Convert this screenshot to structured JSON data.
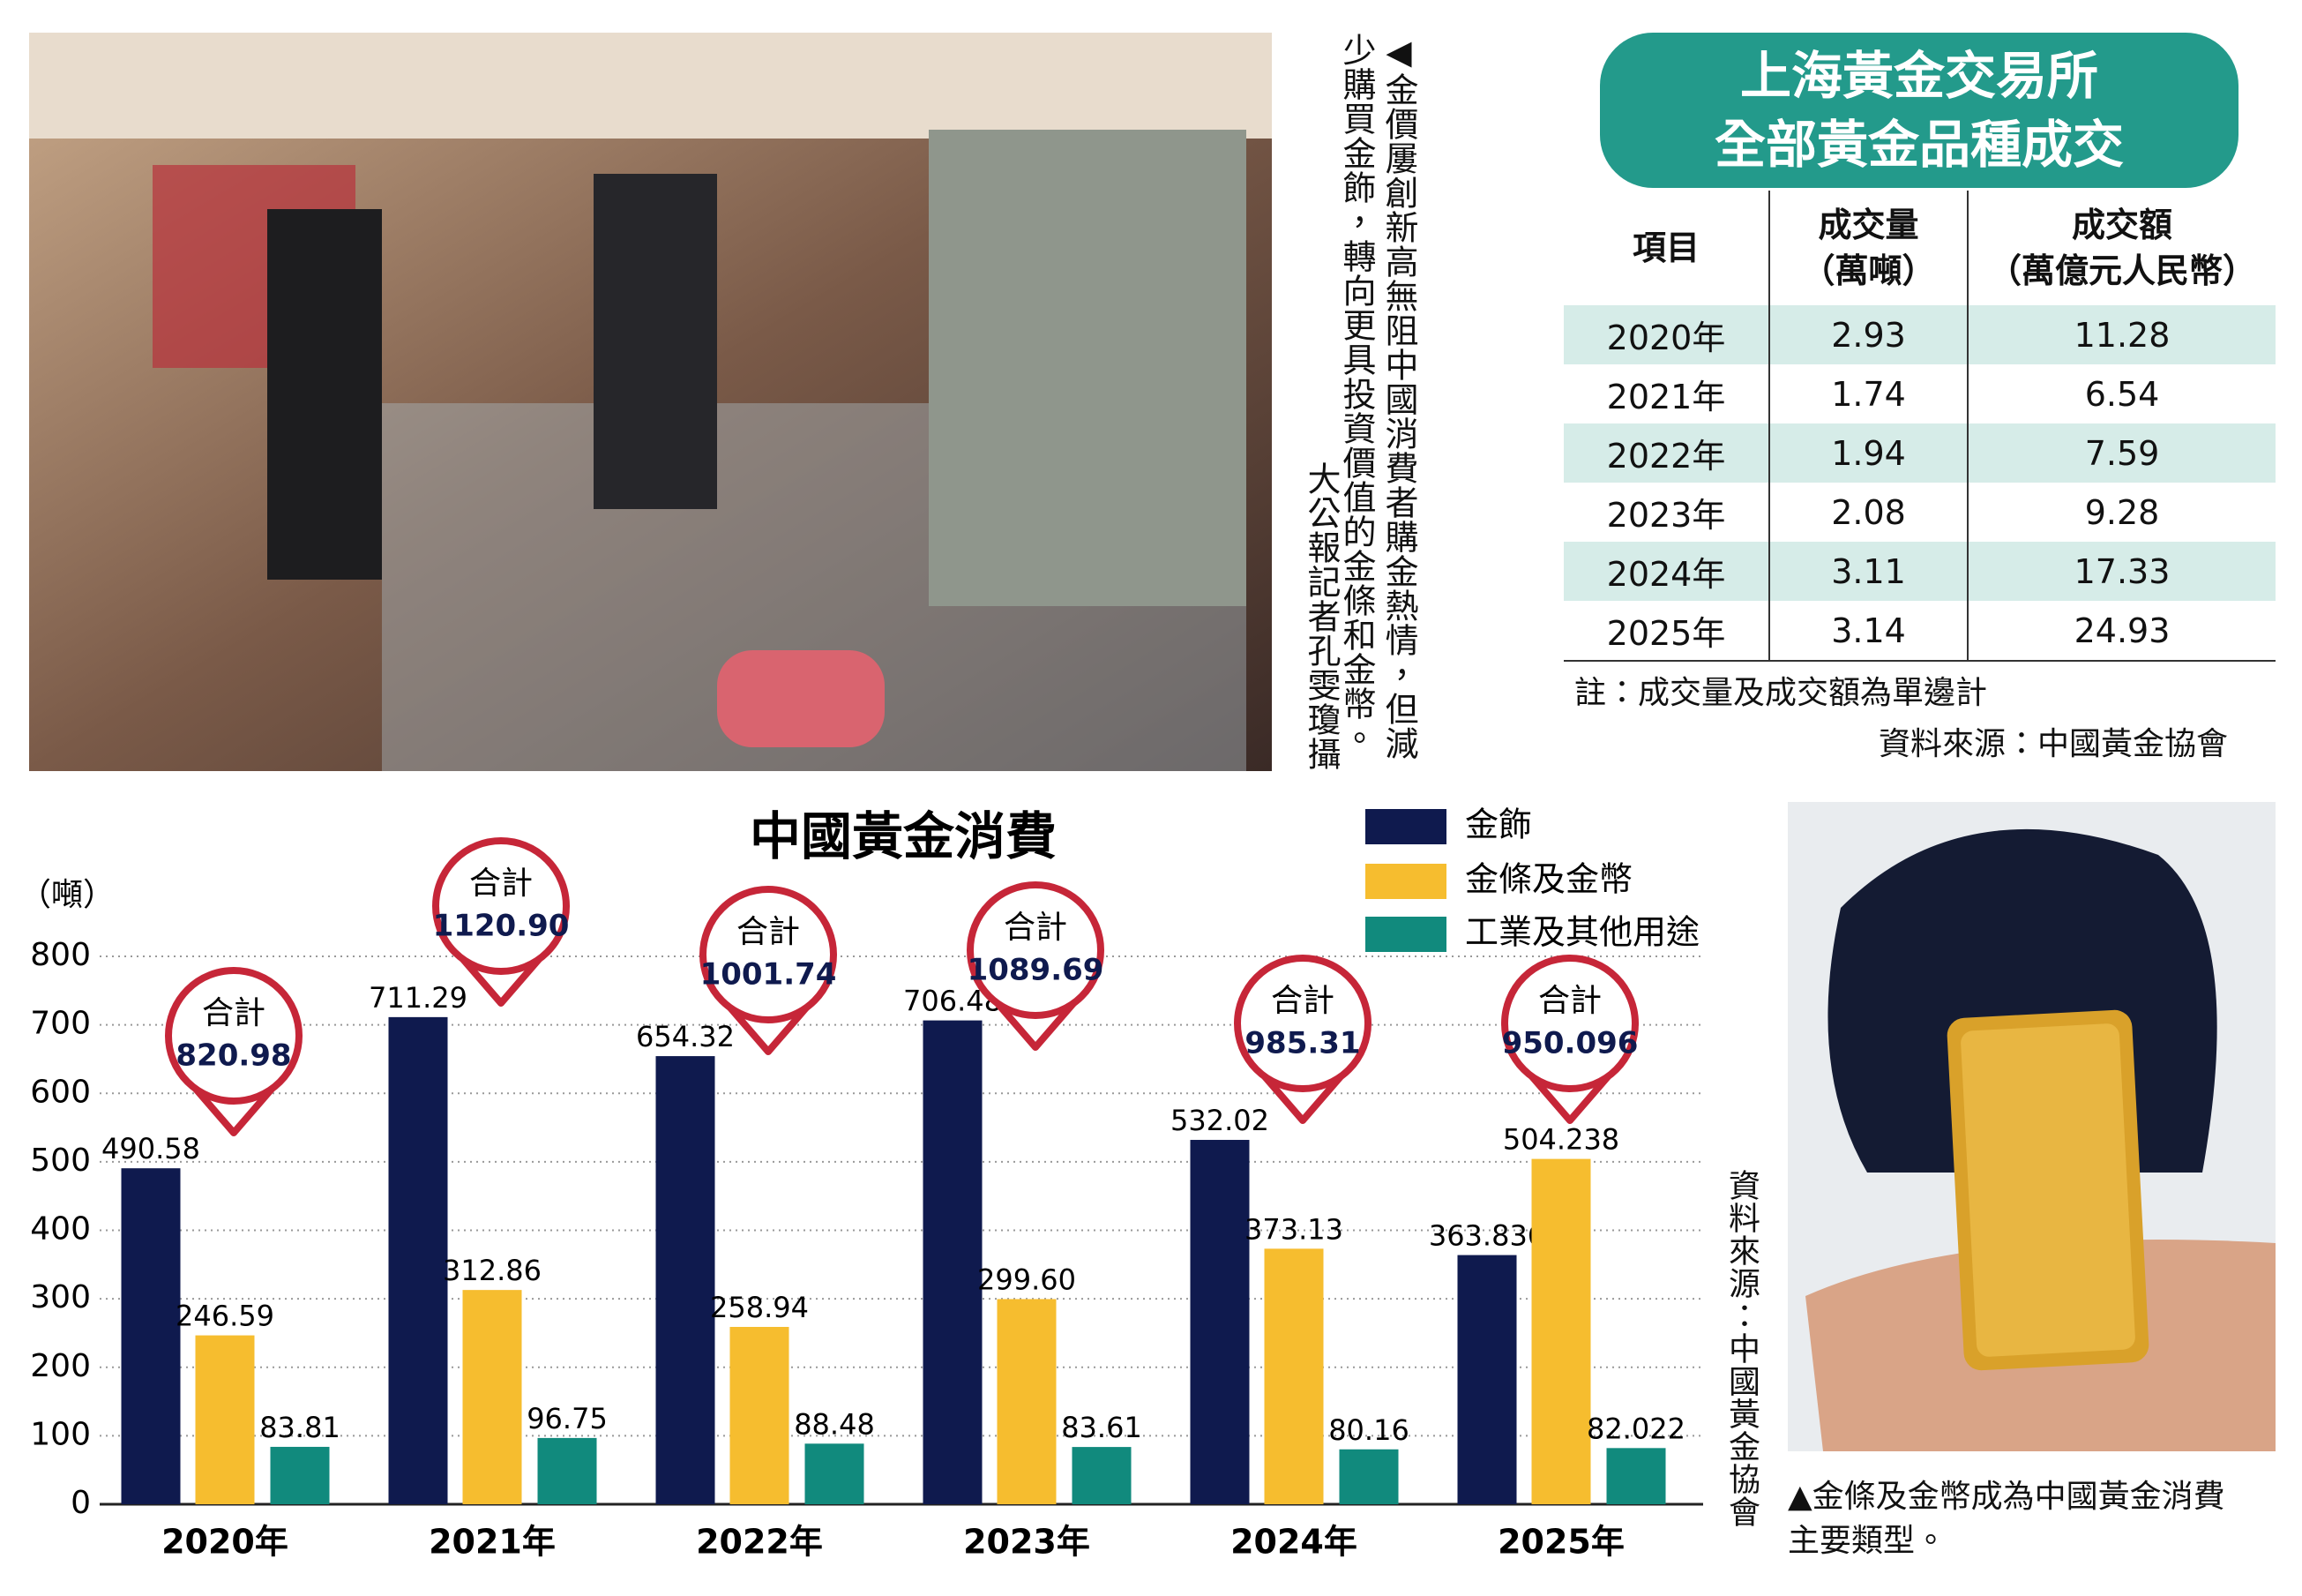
{
  "photo_caption": {
    "text": "◀金價屢創新高無阻中國消費者購金熱情，但減少購買金飾，轉向更具投資價值的金條和金幣。",
    "credit": "大公報記者孔雯瓊攝"
  },
  "table": {
    "title": [
      "上海黃金交易所",
      "全部黃金品種成交"
    ],
    "header": [
      [
        "項目"
      ],
      [
        "成交量",
        "（萬噸）"
      ],
      [
        "成交額",
        "（萬億元人民幣）"
      ]
    ],
    "rows": [
      [
        "2020年",
        "2.93",
        "11.28"
      ],
      [
        "2021年",
        "1.74",
        "6.54"
      ],
      [
        "2022年",
        "1.94",
        "7.59"
      ],
      [
        "2023年",
        "2.08",
        "9.28"
      ],
      [
        "2024年",
        "3.11",
        "17.33"
      ],
      [
        "2025年",
        "3.14",
        "24.93"
      ]
    ],
    "note": "註：成交量及成交額為單邊計",
    "source": "資料來源：中國黃金協會"
  },
  "chart_data": {
    "type": "bar",
    "title": "中國黃金消費",
    "y_label": "（噸）",
    "categories": [
      "2020年",
      "2021年",
      "2022年",
      "2023年",
      "2024年",
      "2025年"
    ],
    "series": [
      {
        "name": "金飾",
        "color": "#0f1a4e",
        "values": [
          490.58,
          711.29,
          654.32,
          706.48,
          532.02,
          363.836
        ],
        "value_labels": [
          "490.58",
          "711.29",
          "654.32",
          "706.48",
          "532.02",
          "363.836"
        ]
      },
      {
        "name": "金條及金幣",
        "color": "#f6bd2f",
        "values": [
          246.59,
          312.86,
          258.94,
          299.6,
          373.13,
          504.238
        ],
        "value_labels": [
          "246.59",
          "312.86",
          "258.94",
          "299.60",
          "373.13",
          "504.238"
        ]
      },
      {
        "name": "工業及其他用途",
        "color": "#118a7d",
        "values": [
          83.81,
          96.75,
          88.48,
          83.61,
          80.16,
          82.022
        ],
        "value_labels": [
          "83.81",
          "96.75",
          "88.48",
          "83.61",
          "80.16",
          "82.022"
        ]
      }
    ],
    "totals": {
      "label": "合計",
      "values": [
        820.98,
        1120.9,
        1001.74,
        1089.69,
        985.31,
        950.096
      ],
      "value_labels": [
        "820.98",
        "1120.90",
        "1001.74",
        "1089.69",
        "985.31",
        "950.096"
      ]
    },
    "ylim": [
      0,
      800
    ],
    "yticks": [
      0,
      100,
      200,
      300,
      400,
      500,
      600,
      700,
      800
    ],
    "grid": true,
    "legend": "top-right",
    "source": "資料來源：中國黃金協會"
  },
  "photo2_caption": [
    "▲金條及金幣成為中國黃金消費",
    "主要類型。"
  ]
}
